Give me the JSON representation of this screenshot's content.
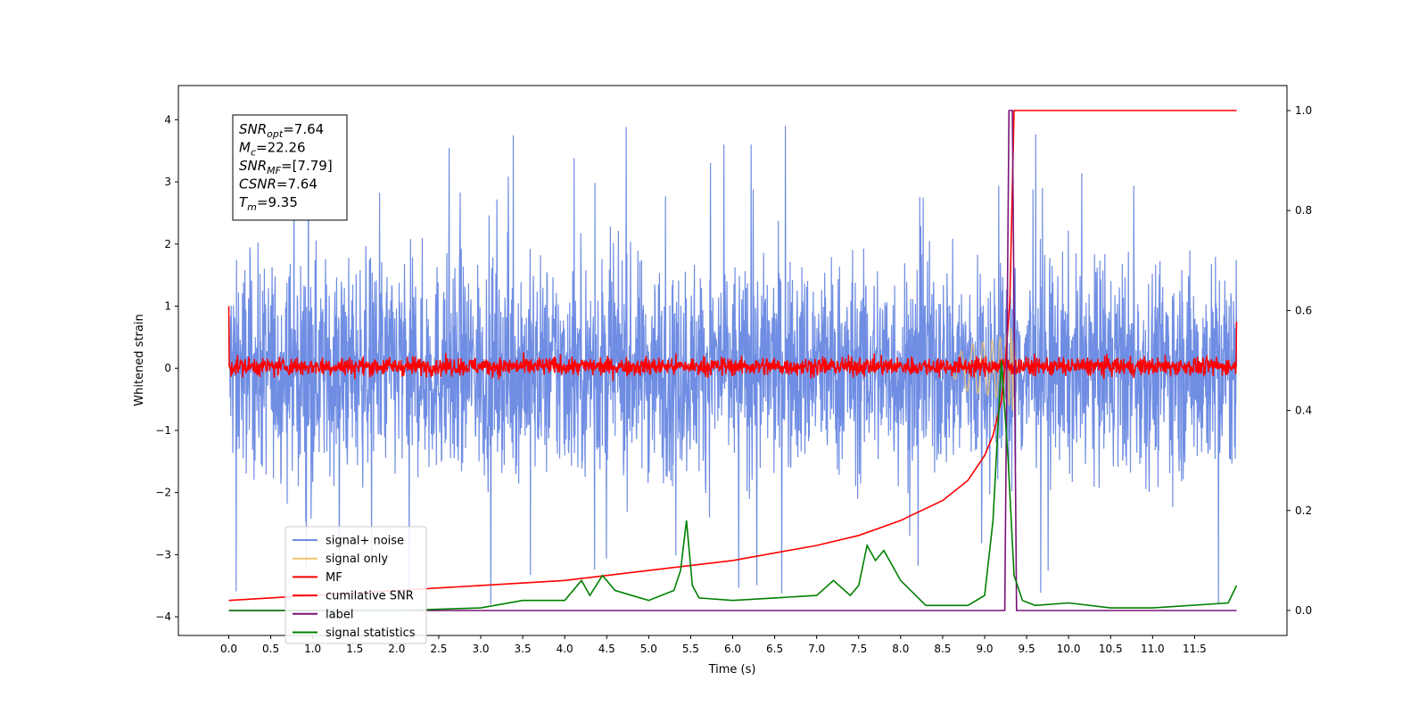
{
  "chart_data": {
    "type": "line",
    "title": "",
    "xlabel": "Time (s)",
    "ylabel": "Whitened strain",
    "xlim": [
      -0.6,
      12.6
    ],
    "ylim": [
      -4.3,
      4.55
    ],
    "y2lim": [
      -0.05,
      1.05
    ],
    "x_ticks": [
      "0.0",
      "0.5",
      "1.0",
      "1.5",
      "2.0",
      "2.5",
      "3.0",
      "3.5",
      "4.0",
      "4.5",
      "5.0",
      "5.5",
      "6.0",
      "6.5",
      "7.0",
      "7.5",
      "8.0",
      "8.5",
      "9.0",
      "9.5",
      "10.0",
      "10.5",
      "11.0",
      "11.5"
    ],
    "y_ticks": [
      "4",
      "3",
      "2",
      "1",
      "0",
      "−1",
      "−2",
      "−3",
      "−4"
    ],
    "y2_ticks": [
      "1.0",
      "0.8",
      "0.6",
      "0.4",
      "0.2",
      "0.0"
    ],
    "grid": false,
    "legend_position": "bottom-left",
    "info_box": [
      {
        "base": "SNR",
        "sub": "opt",
        "value": "=7.64"
      },
      {
        "base": "M",
        "sub": "c",
        "value": "=22.26"
      },
      {
        "base": "SNR",
        "sub": "MF",
        "value": "=[7.79]"
      },
      {
        "base": "CSNR",
        "sub": "",
        "value": "=7.64"
      },
      {
        "base": "T",
        "sub": "m",
        "value": "=9.35"
      }
    ],
    "series": [
      {
        "name": "signal+ noise",
        "axis": "left",
        "color": "#6f8de3",
        "x_range": [
          0,
          12.0
        ],
        "band": [
          -2.2,
          2.3
        ],
        "peaks": [
          -3.8,
          4.2
        ]
      },
      {
        "name": "signal only",
        "axis": "left",
        "color": "#f2c36b",
        "chirp_end": 9.35
      },
      {
        "name": "MF",
        "axis": "left",
        "color": "#ff0000",
        "x_range": [
          0,
          12.0
        ],
        "band": [
          -0.15,
          0.2
        ]
      },
      {
        "name": "cumilative SNR",
        "axis": "right",
        "color": "#ff0000",
        "x": [
          0,
          1,
          2,
          3,
          4,
          5,
          6,
          7,
          7.5,
          8,
          8.5,
          8.8,
          9.0,
          9.1,
          9.2,
          9.25,
          9.3,
          9.35,
          12.0
        ],
        "y": [
          0.02,
          0.03,
          0.04,
          0.05,
          0.06,
          0.08,
          0.1,
          0.13,
          0.15,
          0.18,
          0.22,
          0.26,
          0.31,
          0.35,
          0.42,
          0.5,
          0.62,
          1.0,
          1.0
        ]
      },
      {
        "name": "label",
        "axis": "right",
        "color": "#7b1278",
        "x": [
          0,
          9.24,
          9.29,
          9.33,
          9.38,
          12.0
        ],
        "y": [
          0.0,
          0.0,
          1.0,
          1.0,
          0.0,
          0.0
        ]
      },
      {
        "name": "signal statistics",
        "axis": "right",
        "color": "#008000",
        "x": [
          0,
          1,
          2,
          3,
          3.5,
          4.0,
          4.2,
          4.3,
          4.45,
          4.6,
          5.0,
          5.3,
          5.38,
          5.45,
          5.52,
          5.6,
          6.0,
          6.5,
          7.0,
          7.2,
          7.4,
          7.5,
          7.6,
          7.7,
          7.8,
          8.0,
          8.3,
          8.8,
          9.0,
          9.1,
          9.2,
          9.28,
          9.35,
          9.45,
          9.6,
          10.0,
          10.5,
          11.0,
          11.9,
          12.0
        ],
        "y": [
          0.0,
          0.0,
          0.0,
          0.005,
          0.02,
          0.02,
          0.06,
          0.03,
          0.07,
          0.04,
          0.02,
          0.04,
          0.08,
          0.18,
          0.05,
          0.025,
          0.02,
          0.025,
          0.03,
          0.06,
          0.03,
          0.05,
          0.13,
          0.1,
          0.12,
          0.06,
          0.01,
          0.01,
          0.03,
          0.18,
          0.5,
          0.3,
          0.07,
          0.02,
          0.01,
          0.015,
          0.005,
          0.005,
          0.015,
          0.05
        ]
      }
    ]
  }
}
